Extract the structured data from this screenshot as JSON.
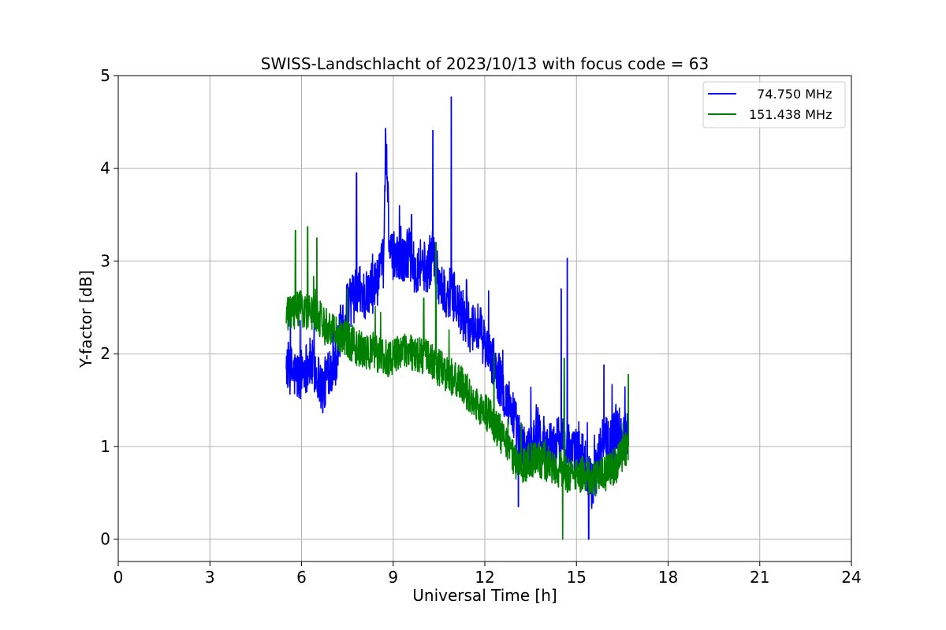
{
  "chart_data": {
    "type": "line",
    "title": "SWISS-Landschlacht of 2023/10/13 with focus code = 63",
    "xlabel": "Universal Time [h]",
    "ylabel": "Y-factor [dB]",
    "xlim": [
      0,
      24
    ],
    "ylim": [
      -0.24,
      5.0
    ],
    "xticks": [
      0,
      3,
      6,
      9,
      12,
      15,
      18,
      21,
      24
    ],
    "yticks": [
      0,
      1,
      2,
      3,
      4,
      5
    ],
    "xtick_labels": [
      "0",
      "3",
      "6",
      "9",
      "12",
      "15",
      "18",
      "21",
      "24"
    ],
    "ytick_labels": [
      "0",
      "1",
      "2",
      "3",
      "4",
      "5"
    ],
    "grid": true,
    "legend_position": "top-right",
    "series": [
      {
        "name": "  74.750 MHz",
        "color": "#0000ff",
        "x": [
          5.5,
          5.7,
          5.9,
          6.1,
          6.3,
          6.5,
          6.7,
          6.9,
          7.1,
          7.3,
          7.5,
          7.7,
          7.9,
          8.1,
          8.3,
          8.5,
          8.7,
          8.75,
          8.9,
          9.1,
          9.3,
          9.5,
          9.7,
          9.9,
          10.1,
          10.3,
          10.5,
          10.7,
          10.9,
          11.1,
          11.3,
          11.5,
          11.7,
          11.9,
          12.1,
          12.3,
          12.5,
          12.7,
          12.9,
          13.1,
          13.3,
          13.5,
          13.7,
          13.9,
          14.1,
          14.3,
          14.5,
          14.7,
          14.9,
          15.1,
          15.3,
          15.5,
          15.7,
          15.9,
          16.1,
          16.3,
          16.5,
          16.7
        ],
        "y": [
          1.9,
          1.8,
          1.75,
          1.85,
          1.9,
          1.8,
          1.6,
          1.85,
          1.9,
          2.3,
          2.5,
          2.6,
          2.7,
          2.6,
          2.7,
          2.8,
          3.0,
          4.4,
          3.0,
          3.1,
          3.0,
          3.1,
          2.9,
          3.0,
          2.9,
          3.1,
          2.8,
          2.6,
          2.7,
          2.5,
          2.4,
          2.3,
          2.3,
          2.2,
          2.0,
          1.9,
          1.7,
          1.5,
          1.4,
          1.1,
          0.9,
          1.0,
          1.2,
          1.1,
          1.0,
          1.0,
          1.1,
          1.0,
          0.9,
          1.0,
          0.8,
          0.6,
          0.8,
          1.1,
          1.0,
          1.2,
          1.1,
          1.2
        ],
        "peaks": [
          [
            7.8,
            3.95
          ],
          [
            8.75,
            4.43
          ],
          [
            9.6,
            3.5
          ],
          [
            10.3,
            4.41
          ],
          [
            10.9,
            4.77
          ],
          [
            11.4,
            2.8
          ],
          [
            13.1,
            0.35
          ],
          [
            14.5,
            2.7
          ],
          [
            14.7,
            3.03
          ],
          [
            15.4,
            0.0
          ],
          [
            15.9,
            1.88
          ]
        ]
      },
      {
        "name": "151.438 MHz",
        "color": "#008000",
        "x": [
          5.5,
          5.7,
          5.9,
          6.1,
          6.3,
          6.5,
          6.7,
          6.9,
          7.1,
          7.3,
          7.5,
          7.7,
          7.9,
          8.1,
          8.3,
          8.5,
          8.7,
          8.9,
          9.1,
          9.3,
          9.5,
          9.7,
          9.9,
          10.1,
          10.3,
          10.5,
          10.7,
          10.9,
          11.1,
          11.3,
          11.5,
          11.7,
          11.9,
          12.1,
          12.3,
          12.5,
          12.7,
          12.9,
          13.1,
          13.3,
          13.5,
          13.7,
          13.9,
          14.1,
          14.3,
          14.5,
          14.7,
          14.9,
          15.1,
          15.3,
          15.5,
          15.7,
          15.9,
          16.1,
          16.3,
          16.5,
          16.7
        ],
        "y": [
          2.4,
          2.45,
          2.5,
          2.45,
          2.45,
          2.4,
          2.35,
          2.3,
          2.25,
          2.2,
          2.15,
          2.1,
          2.05,
          2.0,
          2.05,
          2.0,
          1.95,
          1.95,
          2.0,
          2.0,
          2.05,
          2.0,
          2.0,
          1.95,
          1.9,
          1.85,
          1.8,
          1.75,
          1.7,
          1.65,
          1.55,
          1.45,
          1.4,
          1.35,
          1.25,
          1.15,
          1.0,
          0.9,
          0.8,
          0.8,
          0.85,
          0.85,
          0.85,
          0.8,
          0.75,
          0.75,
          0.7,
          0.7,
          0.7,
          0.7,
          0.65,
          0.65,
          0.7,
          0.75,
          0.8,
          0.9,
          1.0
        ],
        "peaks": [
          [
            5.8,
            3.33
          ],
          [
            6.2,
            3.37
          ],
          [
            6.5,
            3.25
          ],
          [
            7.5,
            2.7
          ],
          [
            10.0,
            2.6
          ],
          [
            10.4,
            3.2
          ],
          [
            12.3,
            2.0
          ],
          [
            14.55,
            0.0
          ],
          [
            14.6,
            1.95
          ],
          [
            16.7,
            1.78
          ]
        ]
      }
    ]
  }
}
